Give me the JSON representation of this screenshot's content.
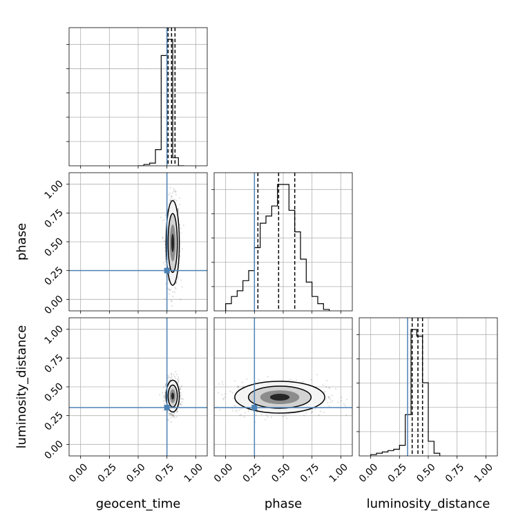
{
  "chart_data": {
    "type": "corner",
    "parameters": [
      "geocent_time",
      "phase",
      "luminosity_distance"
    ],
    "axis_ranges": [
      [
        -0.1,
        1.1
      ],
      [
        -0.1,
        1.1
      ],
      [
        -0.1,
        1.1
      ]
    ],
    "tick_values": [
      0.0,
      0.25,
      0.5,
      0.75,
      1.0
    ],
    "tick_labels": [
      "0.00",
      "0.25",
      "0.50",
      "0.75",
      "1.00"
    ],
    "grid": true,
    "truth_color": "#4c82b4",
    "truths": {
      "geocent_time": 0.75,
      "phase": 0.25,
      "luminosity_distance": 0.32
    },
    "quantiles": {
      "geocent_time": [
        0.76,
        0.79,
        0.82
      ],
      "phase": [
        0.28,
        0.46,
        0.6
      ],
      "luminosity_distance": [
        0.36,
        0.41,
        0.45
      ]
    },
    "histograms": {
      "geocent_time": {
        "bin_edges": [
          0.5,
          0.55,
          0.6,
          0.65,
          0.7,
          0.75,
          0.8,
          0.85,
          0.9
        ],
        "counts": [
          0,
          1,
          2,
          12,
          82,
          94,
          6,
          0
        ]
      },
      "phase": {
        "bin_edges": [
          0.0,
          0.05,
          0.1,
          0.15,
          0.2,
          0.25,
          0.3,
          0.35,
          0.4,
          0.45,
          0.5,
          0.55,
          0.6,
          0.65,
          0.7,
          0.75,
          0.8,
          0.85,
          0.9
        ],
        "counts": [
          5,
          10,
          14,
          21,
          28,
          44,
          61,
          66,
          73,
          88,
          88,
          70,
          55,
          36,
          20,
          10,
          5,
          1
        ]
      },
      "luminosity_distance": {
        "bin_edges": [
          0.0,
          0.05,
          0.1,
          0.15,
          0.2,
          0.25,
          0.3,
          0.35,
          0.4,
          0.45,
          0.5,
          0.55,
          0.6
        ],
        "counts": [
          1,
          2,
          3,
          4,
          5,
          8,
          31,
          95,
          90,
          55,
          11,
          2
        ]
      }
    },
    "posterior_2d": {
      "phase_vs_geocent_time": {
        "x_center": 0.8,
        "y_center": 0.49,
        "x_sd": 0.025,
        "y_sd": 0.16
      },
      "luminosity_distance_vs_geocent_time": {
        "x_center": 0.8,
        "y_center": 0.42,
        "x_sd": 0.025,
        "y_sd": 0.06
      },
      "luminosity_distance_vs_phase": {
        "x_center": 0.47,
        "y_center": 0.41,
        "x_sd": 0.17,
        "y_sd": 0.06
      }
    }
  }
}
